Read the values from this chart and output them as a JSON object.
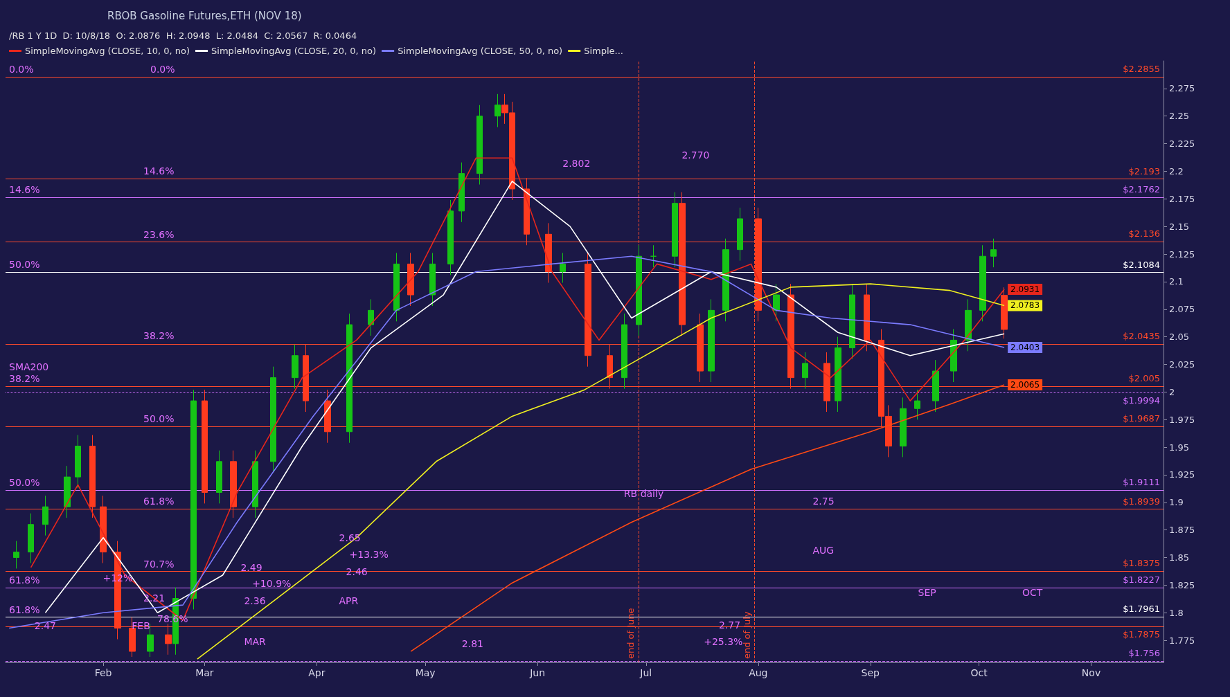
{
  "chart_data": {
    "type": "candlestick",
    "title": "RBOB Gasoline Futures,ETH (NOV 18)",
    "subtitle": "/RB 1 Y 1D  D: 10/8/18  O: 2.0876  H: 2.0948  L: 2.0484  C: 2.0567  R: 0.0464",
    "x": [
      "--01-08",
      "--01-12",
      "--01-16",
      "--01-22",
      "--01-25",
      "--01-29",
      "--02-01",
      "--02-05",
      "--02-09",
      "--02-14",
      "--02-19",
      "--02-21",
      "--02-26",
      "--03-01",
      "--03-05",
      "--03-09",
      "--03-15",
      "--03-20",
      "--03-26",
      "--03-29",
      "--04-04",
      "--04-10",
      "--04-16",
      "--04-23",
      "--04-27",
      "--05-03",
      "--05-08",
      "--05-11",
      "--05-16",
      "--05-21",
      "--05-23",
      "--05-25",
      "--05-29",
      "--06-04",
      "--06-08",
      "--06-15",
      "--06-21",
      "--06-25",
      "--06-29",
      "--07-03",
      "--07-09",
      "--07-11",
      "--07-16",
      "--07-19",
      "--07-23",
      "--07-27",
      "--08-01",
      "--08-06",
      "--08-10",
      "--08-14",
      "--08-20",
      "--08-23",
      "--08-27",
      "--08-31",
      "--09-04",
      "--09-06",
      "--09-10",
      "--09-14",
      "--09-19",
      "--09-24",
      "--09-28",
      "--10-02",
      "--10-05",
      "--10-08"
    ],
    "ohlc": [
      [
        1.85,
        1.865,
        1.84,
        1.855
      ],
      [
        1.855,
        1.89,
        1.845,
        1.88
      ],
      [
        1.88,
        1.906,
        1.87,
        1.896
      ],
      [
        1.896,
        1.933,
        1.886,
        1.923
      ],
      [
        1.923,
        1.961,
        1.913,
        1.951
      ],
      [
        1.951,
        1.961,
        1.886,
        1.896
      ],
      [
        1.896,
        1.906,
        1.845,
        1.855
      ],
      [
        1.855,
        1.865,
        1.776,
        1.786
      ],
      [
        1.786,
        1.796,
        1.76,
        1.765
      ],
      [
        1.765,
        1.79,
        1.76,
        1.78
      ],
      [
        1.78,
        1.79,
        1.762,
        1.772
      ],
      [
        1.772,
        1.823,
        1.762,
        1.813
      ],
      [
        1.813,
        2.002,
        1.803,
        1.992
      ],
      [
        1.992,
        2.002,
        1.899,
        1.909
      ],
      [
        1.909,
        1.947,
        1.899,
        1.937
      ],
      [
        1.937,
        1.947,
        1.886,
        1.896
      ],
      [
        1.896,
        1.947,
        1.886,
        1.937
      ],
      [
        1.937,
        2.023,
        1.927,
        2.013
      ],
      [
        2.013,
        2.043,
        2.003,
        2.033
      ],
      [
        2.033,
        2.043,
        1.982,
        1.992
      ],
      [
        1.992,
        2.002,
        1.954,
        1.964
      ],
      [
        1.964,
        2.071,
        1.954,
        2.061
      ],
      [
        2.061,
        2.084,
        2.051,
        2.074
      ],
      [
        2.074,
        2.126,
        2.064,
        2.116
      ],
      [
        2.116,
        2.126,
        2.078,
        2.088
      ],
      [
        2.088,
        2.126,
        2.078,
        2.116
      ],
      [
        2.116,
        2.174,
        2.106,
        2.164
      ],
      [
        2.164,
        2.208,
        2.154,
        2.198
      ],
      [
        2.198,
        2.26,
        2.188,
        2.25
      ],
      [
        2.25,
        2.27,
        2.24,
        2.26
      ],
      [
        2.26,
        2.27,
        2.243,
        2.253
      ],
      [
        2.253,
        2.263,
        2.174,
        2.184
      ],
      [
        2.184,
        2.194,
        2.133,
        2.143
      ],
      [
        2.143,
        2.153,
        2.099,
        2.109
      ],
      [
        2.109,
        2.126,
        2.099,
        2.116
      ],
      [
        2.116,
        2.126,
        2.023,
        2.033
      ],
      [
        2.033,
        2.043,
        2.003,
        2.013
      ],
      [
        2.013,
        2.071,
        2.003,
        2.061
      ],
      [
        2.061,
        2.133,
        2.051,
        2.123
      ],
      [
        2.123,
        2.133,
        2.113,
        2.123
      ],
      [
        2.123,
        2.181,
        2.113,
        2.171
      ],
      [
        2.171,
        2.181,
        2.051,
        2.061
      ],
      [
        2.061,
        2.071,
        2.009,
        2.019
      ],
      [
        2.019,
        2.084,
        2.009,
        2.074
      ],
      [
        2.074,
        2.139,
        2.064,
        2.129
      ],
      [
        2.129,
        2.167,
        2.119,
        2.157
      ],
      [
        2.157,
        2.167,
        2.064,
        2.074
      ],
      [
        2.074,
        2.098,
        2.064,
        2.088
      ],
      [
        2.088,
        2.098,
        2.003,
        2.013
      ],
      [
        2.013,
        2.036,
        2.003,
        2.026
      ],
      [
        2.026,
        2.036,
        1.982,
        1.992
      ],
      [
        1.992,
        2.05,
        1.982,
        2.04
      ],
      [
        2.04,
        2.098,
        2.03,
        2.088
      ],
      [
        2.088,
        2.098,
        2.037,
        2.047
      ],
      [
        2.047,
        2.057,
        1.968,
        1.978
      ],
      [
        1.978,
        1.988,
        1.941,
        1.951
      ],
      [
        1.951,
        1.995,
        1.941,
        1.985
      ],
      [
        1.985,
        2.002,
        1.975,
        1.992
      ],
      [
        1.992,
        2.029,
        1.982,
        2.019
      ],
      [
        2.019,
        2.057,
        2.009,
        2.047
      ],
      [
        2.047,
        2.084,
        2.037,
        2.074
      ],
      [
        2.074,
        2.133,
        2.064,
        2.123
      ],
      [
        2.123,
        2.139,
        2.113,
        2.129
      ],
      [
        2.0876,
        2.0948,
        2.0484,
        2.0567
      ]
    ],
    "series": [
      {
        "name": "SimpleMovingAvg (CLOSE, 10, 0, no)",
        "type": "line",
        "color": "#e8261c",
        "x": [
          "--01-12",
          "--01-25",
          "--02-07",
          "--02-23",
          "--03-10",
          "--03-28",
          "--04-12",
          "--04-29",
          "--05-15",
          "--05-25",
          "--06-05",
          "--06-18",
          "--07-04",
          "--07-19",
          "--07-30",
          "--08-10",
          "--08-21",
          "--09-01",
          "--09-12",
          "--09-27",
          "--10-08"
        ],
        "values": [
          1.841,
          1.916,
          1.834,
          1.793,
          1.909,
          2.013,
          2.047,
          2.109,
          2.212,
          2.212,
          2.109,
          2.047,
          2.116,
          2.102,
          2.116,
          2.04,
          2.013,
          2.047,
          1.992,
          2.047,
          2.0931
        ],
        "value_labels": [
          null,
          null,
          null,
          null,
          null,
          null,
          null,
          null,
          null,
          null,
          null,
          null,
          null,
          null,
          null,
          null,
          null,
          null,
          null,
          null,
          "2.0931"
        ]
      },
      {
        "name": "SimpleMovingAvg (CLOSE, 20, 0, no)",
        "type": "line",
        "color": "#ffffff",
        "x": [
          "--01-16",
          "--02-01",
          "--02-16",
          "--03-06",
          "--03-28",
          "--04-16",
          "--05-06",
          "--05-25",
          "--06-10",
          "--06-27",
          "--07-19",
          "--08-06",
          "--08-23",
          "--09-12",
          "--10-08"
        ],
        "values": [
          1.8,
          1.868,
          1.8,
          1.834,
          1.951,
          2.04,
          2.088,
          2.191,
          2.15,
          2.067,
          2.109,
          2.095,
          2.054,
          2.033,
          2.0527
        ]
      },
      {
        "name": "SimpleMovingAvg (CLOSE, 50, 0, no)",
        "type": "line",
        "color": "#7b7bff",
        "x": [
          "--01-06",
          "--02-01",
          "--02-23",
          "--03-10",
          "--03-31",
          "--04-23",
          "--05-15",
          "--06-05",
          "--06-27",
          "--07-19",
          "--08-06",
          "--08-21",
          "--09-12",
          "--10-08"
        ],
        "values": [
          1.786,
          1.8,
          1.807,
          1.882,
          1.978,
          2.074,
          2.109,
          2.116,
          2.123,
          2.109,
          2.074,
          2.067,
          2.061,
          2.0403
        ],
        "value_labels": [
          null,
          null,
          null,
          null,
          null,
          null,
          null,
          null,
          null,
          null,
          null,
          null,
          null,
          "2.0403"
        ]
      },
      {
        "name": "Simple...",
        "type": "line",
        "color": "#f0f020",
        "x": [
          "--02-27",
          "--03-21",
          "--04-12",
          "--05-04",
          "--05-25",
          "--06-14",
          "--06-27",
          "--07-19",
          "--08-10",
          "--09-01",
          "--09-23",
          "--10-08"
        ],
        "values": [
          1.758,
          1.813,
          1.868,
          1.937,
          1.978,
          2.002,
          2.026,
          2.067,
          2.095,
          2.098,
          2.092,
          2.0783
        ],
        "value_labels": [
          null,
          null,
          null,
          null,
          null,
          null,
          null,
          null,
          null,
          null,
          null,
          "2.0783"
        ]
      },
      {
        "type": "line",
        "color": "#ff4a14",
        "x": [
          "--04-27",
          "--05-25",
          "--06-27",
          "--07-30",
          "--09-01",
          "--09-23",
          "--10-08"
        ],
        "values": [
          1.765,
          1.827,
          1.882,
          1.93,
          1.964,
          1.989,
          2.0065
        ],
        "value_labels": [
          null,
          null,
          null,
          null,
          null,
          null,
          "2.0065"
        ]
      }
    ],
    "xlim": [
      "--01-05",
      "--11-21"
    ],
    "xticks": [
      {
        "value": "--02-01",
        "label": "Feb"
      },
      {
        "value": "--03-01",
        "label": "Mar"
      },
      {
        "value": "--04-01",
        "label": "Apr"
      },
      {
        "value": "--05-01",
        "label": "May"
      },
      {
        "value": "--06-01",
        "label": "Jun"
      },
      {
        "value": "--07-01",
        "label": "Jul"
      },
      {
        "value": "--08-01",
        "label": "Aug"
      },
      {
        "value": "--09-01",
        "label": "Sep"
      },
      {
        "value": "--10-01",
        "label": "Oct"
      },
      {
        "value": "--11-01",
        "label": "Nov"
      }
    ],
    "ylim": [
      1.755,
      2.3
    ],
    "yticks": [
      1.775,
      1.8,
      1.825,
      1.85,
      1.875,
      1.9,
      1.925,
      1.95,
      1.975,
      2,
      2.025,
      2.05,
      2.075,
      2.1,
      2.125,
      2.15,
      2.175,
      2.2,
      2.225,
      2.25,
      2.275
    ],
    "grid": false,
    "legend": "top left",
    "ref_lines": [
      {
        "axis": "y",
        "value": 2.2855,
        "label": "$2.2855",
        "color": "#ff4a2a"
      },
      {
        "axis": "y",
        "value": 2.193,
        "label": "$2.193",
        "color": "#ff4a2a"
      },
      {
        "axis": "y",
        "value": 2.1762,
        "label": "$2.1762",
        "color": "#d070ff"
      },
      {
        "axis": "y",
        "value": 2.136,
        "label": "$2.136",
        "color": "#ff4a2a"
      },
      {
        "axis": "y",
        "value": 2.1084,
        "label": "$2.1084",
        "color": "#ffffff"
      },
      {
        "axis": "y",
        "value": 2.0435,
        "label": "$2.0435",
        "color": "#ff4a2a"
      },
      {
        "axis": "y",
        "value": 2.005,
        "label": "$2.005",
        "color": "#ff4a2a"
      },
      {
        "axis": "y",
        "value": 1.9994,
        "label": "$1.9994",
        "color": "#d070ff",
        "line_style": "dotted"
      },
      {
        "axis": "y",
        "value": 1.9687,
        "label": "$1.9687",
        "color": "#ff4a2a"
      },
      {
        "axis": "y",
        "value": 1.9111,
        "label": "$1.9111",
        "color": "#d070ff"
      },
      {
        "axis": "y",
        "value": 1.8939,
        "label": "$1.8939",
        "color": "#ff4a2a"
      },
      {
        "axis": "y",
        "value": 1.8375,
        "label": "$1.8375",
        "color": "#ff4a2a"
      },
      {
        "axis": "y",
        "value": 1.8227,
        "label": "$1.8227",
        "color": "#d070ff"
      },
      {
        "axis": "y",
        "value": 1.7961,
        "label": "$1.7961",
        "color": "#ffffff"
      },
      {
        "axis": "y",
        "value": 1.7875,
        "label": "$1.7875",
        "color": "#ff4a2a"
      },
      {
        "axis": "y",
        "value": 1.756,
        "label": "$1.756",
        "color": "#d070ff",
        "line_style": "dashed"
      },
      {
        "axis": "x",
        "value": "--06-29",
        "label": "end of June",
        "color": "#ff4a2a",
        "line_style": "dashed"
      },
      {
        "axis": "x",
        "value": "--07-31",
        "label": "end of July",
        "color": "#ff4a2a",
        "line_style": "dashed"
      }
    ],
    "annotations": [
      "0.0%",
      "0.0%",
      "14.6%",
      "14.6%",
      "23.6%",
      "50.0%",
      "38.2%",
      "SMA200",
      "38.2%",
      "50.0%",
      "50.0%",
      "61.8%",
      "70.7%",
      "61.8%",
      "61.8%",
      "78.6%",
      "2.802",
      "2.770",
      "2.65",
      "+13.3%",
      "2.49",
      "+10.9%",
      "2.46",
      "2.36",
      "2.21",
      "+12%",
      "2.47",
      "2.75",
      "2.77",
      "+25.3%",
      "2.81",
      "FEB",
      "MAR",
      "APR",
      "AUG",
      "SEP",
      "OCT",
      "RB daily"
    ]
  }
}
